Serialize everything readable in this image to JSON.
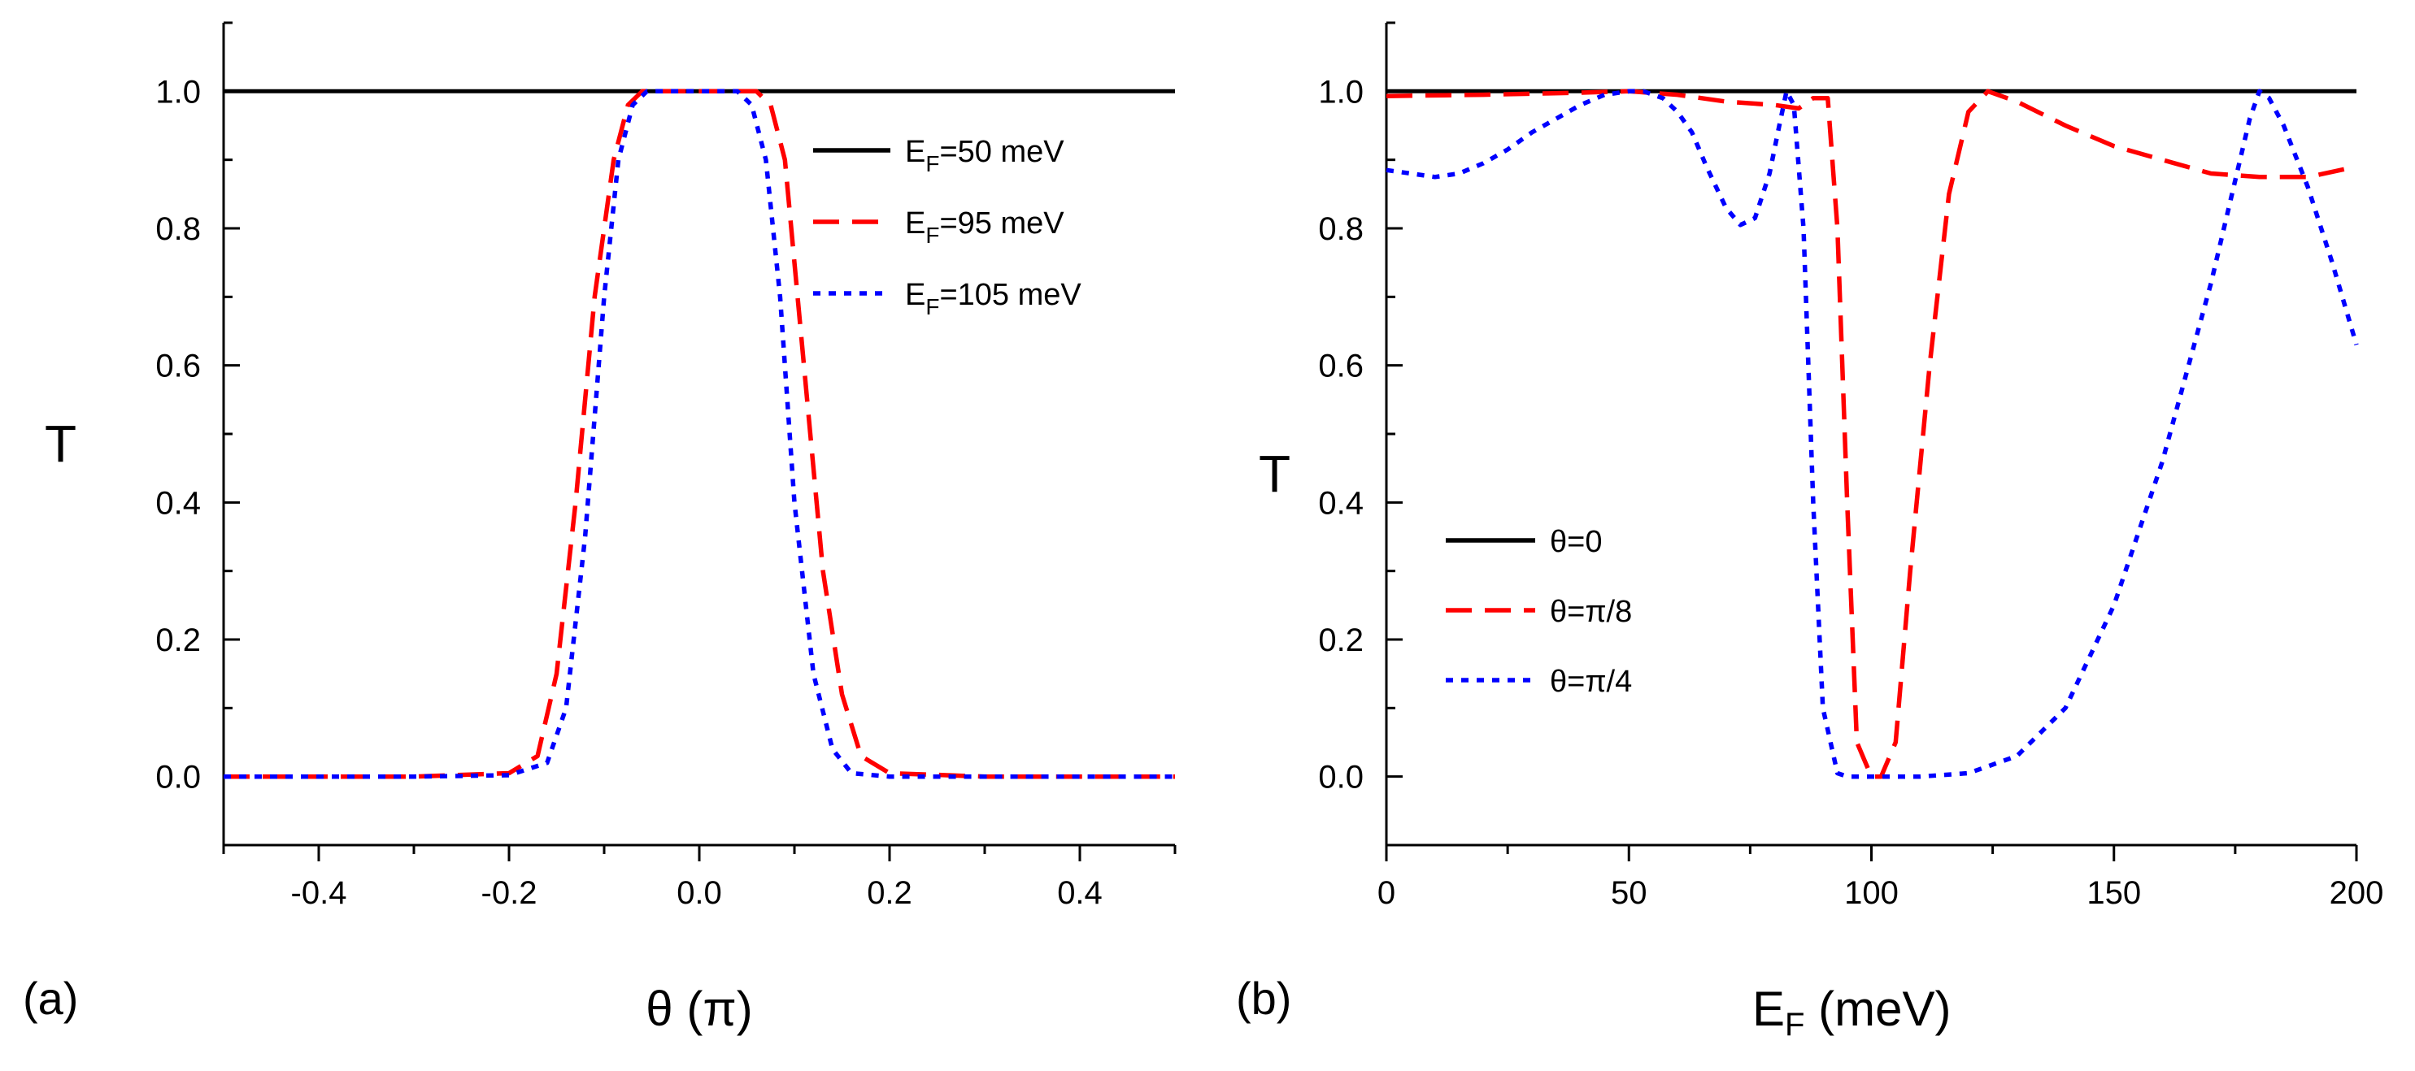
{
  "figure": {
    "panel_labels": [
      "(a)",
      "(b)"
    ]
  },
  "chart_data": [
    {
      "type": "line",
      "panel": "(a)",
      "xlabel": "θ (π)",
      "ylabel": "T",
      "xlim": [
        -0.5,
        0.5
      ],
      "ylim": [
        -0.1,
        1.1
      ],
      "xticks": [
        -0.4,
        -0.2,
        0.0,
        0.2,
        0.4
      ],
      "xtick_labels": [
        "-0.4",
        "-0.2",
        "0.0",
        "0.2",
        "0.4"
      ],
      "xminor": [
        -0.5,
        -0.3,
        -0.1,
        0.1,
        0.3,
        0.5
      ],
      "yticks": [
        0.0,
        0.2,
        0.4,
        0.6,
        0.8,
        1.0
      ],
      "ytick_labels": [
        "0.0",
        "0.2",
        "0.4",
        "0.6",
        "0.8",
        "1.0"
      ],
      "yminor": [
        -0.1,
        0.1,
        0.3,
        0.5,
        0.7,
        0.9,
        1.1
      ],
      "legend_position": "top-right",
      "series": [
        {
          "name": "E_F=50 meV",
          "label_main": "E",
          "label_sub": "F",
          "label_rest": "=50 meV",
          "color": "#000000",
          "style": "solid",
          "x": [
            -0.5,
            0.5
          ],
          "y": [
            1.0,
            1.0
          ]
        },
        {
          "name": "E_F=95 meV",
          "label_main": "E",
          "label_sub": "F",
          "label_rest": "=95 meV",
          "color": "#ff0000",
          "style": "dashed",
          "x": [
            -0.5,
            -0.3,
            -0.2,
            -0.17,
            -0.15,
            -0.13,
            -0.11,
            -0.09,
            -0.075,
            -0.06,
            -0.05,
            -0.03,
            0.0,
            0.03,
            0.06,
            0.075,
            0.09,
            0.11,
            0.13,
            0.15,
            0.17,
            0.2,
            0.3,
            0.5
          ],
          "y": [
            0.0,
            0.0,
            0.005,
            0.03,
            0.15,
            0.4,
            0.7,
            0.9,
            0.98,
            1.0,
            1.0,
            1.0,
            1.0,
            1.0,
            1.0,
            0.98,
            0.9,
            0.6,
            0.3,
            0.12,
            0.03,
            0.005,
            0.0,
            0.0
          ]
        },
        {
          "name": "E_F=105 meV",
          "label_main": "E",
          "label_sub": "F",
          "label_rest": "=105 meV",
          "color": "#0000ff",
          "style": "dotted",
          "x": [
            -0.5,
            -0.3,
            -0.2,
            -0.16,
            -0.14,
            -0.12,
            -0.1,
            -0.085,
            -0.07,
            -0.055,
            -0.04,
            0.0,
            0.04,
            0.055,
            0.07,
            0.085,
            0.1,
            0.12,
            0.14,
            0.16,
            0.2,
            0.3,
            0.5
          ],
          "y": [
            0.0,
            0.0,
            0.002,
            0.02,
            0.1,
            0.35,
            0.7,
            0.9,
            0.98,
            1.0,
            1.0,
            1.0,
            1.0,
            0.98,
            0.9,
            0.7,
            0.4,
            0.15,
            0.04,
            0.005,
            0.0,
            0.0,
            0.0
          ]
        }
      ]
    },
    {
      "type": "line",
      "panel": "(b)",
      "xlabel_main": "E",
      "xlabel_sub": "F",
      "xlabel_rest": " (meV)",
      "ylabel": "T",
      "xlim": [
        0,
        200
      ],
      "ylim": [
        -0.1,
        1.1
      ],
      "xticks": [
        0,
        50,
        100,
        150,
        200
      ],
      "xtick_labels": [
        "0",
        "50",
        "100",
        "150",
        "200"
      ],
      "xminor": [
        25,
        75,
        125,
        175
      ],
      "yticks": [
        0.0,
        0.2,
        0.4,
        0.6,
        0.8,
        1.0
      ],
      "ytick_labels": [
        "0.0",
        "0.2",
        "0.4",
        "0.6",
        "0.8",
        "1.0"
      ],
      "yminor": [
        -0.1,
        0.1,
        0.3,
        0.5,
        0.7,
        0.9,
        1.1
      ],
      "legend_position": "center-left",
      "series": [
        {
          "name": "θ=0",
          "label_main": "θ=0",
          "label_sub": "",
          "label_rest": "",
          "color": "#000000",
          "style": "solid",
          "x": [
            0,
            200
          ],
          "y": [
            1.0,
            1.0
          ]
        },
        {
          "name": "θ=π/8",
          "label_main": "θ=π/8",
          "label_sub": "",
          "label_rest": "",
          "color": "#ff0000",
          "style": "dashed",
          "x": [
            0,
            20,
            40,
            50,
            60,
            70,
            80,
            85,
            88,
            91,
            93,
            95,
            97,
            100,
            102,
            105,
            108,
            112,
            116,
            120,
            124,
            130,
            140,
            150,
            160,
            170,
            180,
            190,
            200
          ],
          "y": [
            0.993,
            0.995,
            0.998,
            1.0,
            0.995,
            0.985,
            0.98,
            0.975,
            0.99,
            0.99,
            0.8,
            0.4,
            0.05,
            0.0,
            0.0,
            0.05,
            0.3,
            0.6,
            0.85,
            0.97,
            1.0,
            0.985,
            0.95,
            0.92,
            0.9,
            0.88,
            0.875,
            0.875,
            0.89
          ]
        },
        {
          "name": "θ=π/4",
          "label_main": "θ=π/4",
          "label_sub": "",
          "label_rest": "",
          "color": "#0000ff",
          "style": "dotted",
          "x": [
            0,
            5,
            10,
            15,
            20,
            25,
            30,
            35,
            40,
            45,
            50,
            53,
            57,
            60,
            63,
            66,
            70,
            73,
            76,
            79,
            81,
            82.5,
            84,
            86,
            88,
            90,
            93,
            95,
            100,
            110,
            120,
            130,
            140,
            150,
            160,
            170,
            175,
            178,
            180,
            182,
            185,
            190,
            195,
            200
          ],
          "y": [
            0.885,
            0.88,
            0.875,
            0.88,
            0.895,
            0.915,
            0.94,
            0.96,
            0.98,
            0.995,
            1.0,
            1.0,
            0.99,
            0.97,
            0.94,
            0.89,
            0.83,
            0.805,
            0.815,
            0.88,
            0.95,
            1.0,
            0.98,
            0.8,
            0.4,
            0.1,
            0.005,
            0.0,
            0.0,
            0.0,
            0.005,
            0.03,
            0.1,
            0.25,
            0.46,
            0.72,
            0.87,
            0.96,
            1.0,
            0.99,
            0.95,
            0.86,
            0.75,
            0.63
          ]
        }
      ]
    }
  ]
}
